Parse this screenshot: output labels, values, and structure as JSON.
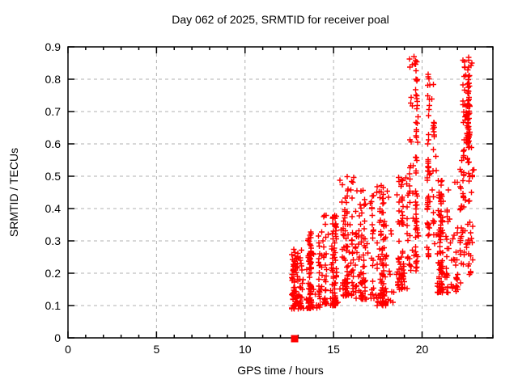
{
  "figure": {
    "background": "#ffffff",
    "text_color": "#000000"
  },
  "chart_data": {
    "type": "scatter",
    "title": "Day 062 of 2025, SRMTID for receiver poal",
    "xlabel": "GPS time / hours",
    "ylabel": "SRMTID / TECUs",
    "xlim": [
      0,
      24
    ],
    "ylim": [
      0,
      0.9
    ],
    "x_major_ticks": [
      {
        "value": 0,
        "label": "0"
      },
      {
        "value": 5,
        "label": "5"
      },
      {
        "value": 10,
        "label": "10"
      },
      {
        "value": 15,
        "label": "15"
      },
      {
        "value": 20,
        "label": "20"
      }
    ],
    "x_minor_tick_step": 1,
    "y_ticks": [
      {
        "value": 0.0,
        "label": "0"
      },
      {
        "value": 0.1,
        "label": "0.1"
      },
      {
        "value": 0.2,
        "label": "0.2"
      },
      {
        "value": 0.3,
        "label": "0.3"
      },
      {
        "value": 0.4,
        "label": "0.4"
      },
      {
        "value": 0.5,
        "label": "0.5"
      },
      {
        "value": 0.6,
        "label": "0.6"
      },
      {
        "value": 0.7,
        "label": "0.7"
      },
      {
        "value": 0.8,
        "label": "0.8"
      },
      {
        "value": 0.9,
        "label": "0.9"
      }
    ],
    "grid": {
      "show": true,
      "color": "#b0b0b0",
      "dash": [
        4,
        4
      ],
      "x_values": [
        5,
        10,
        15,
        20
      ],
      "y_values": [
        0.1,
        0.2,
        0.3,
        0.4,
        0.5,
        0.6,
        0.7,
        0.8
      ]
    },
    "legend": "none",
    "marker": {
      "glyph": "plus",
      "color": "#ff0000",
      "size": 7
    },
    "point_clusters": [
      {
        "x_min": 12.65,
        "x_max": 13.35,
        "y_min": 0.09,
        "y_max": 0.28,
        "count": 95,
        "columns": 5,
        "y_dist": "bottom"
      },
      {
        "x_min": 13.45,
        "x_max": 14.35,
        "y_min": 0.09,
        "y_max": 0.33,
        "count": 115,
        "columns": 6,
        "y_dist": "bottom"
      },
      {
        "x_min": 14.4,
        "x_max": 15.3,
        "y_min": 0.1,
        "y_max": 0.38,
        "count": 105,
        "columns": 6,
        "y_dist": "bottom"
      },
      {
        "x_min": 15.35,
        "x_max": 16.15,
        "y_min": 0.13,
        "y_max": 0.5,
        "count": 95,
        "columns": 5,
        "y_dist": "bottom"
      },
      {
        "x_min": 16.2,
        "x_max": 17.3,
        "y_min": 0.12,
        "y_max": 0.47,
        "count": 95,
        "columns": 6,
        "y_dist": "bottom"
      },
      {
        "x_min": 17.35,
        "x_max": 18.45,
        "y_min": 0.1,
        "y_max": 0.48,
        "count": 105,
        "columns": 6,
        "y_dist": "bottom"
      },
      {
        "x_min": 18.5,
        "x_max": 19.2,
        "y_min": 0.15,
        "y_max": 0.5,
        "count": 75,
        "columns": 4,
        "y_dist": "bottom"
      },
      {
        "x_min": 19.25,
        "x_max": 19.8,
        "y_min": 0.2,
        "y_max": 0.87,
        "count": 85,
        "columns": 3,
        "y_dist": "uniform"
      },
      {
        "x_min": 20.25,
        "x_max": 20.8,
        "y_min": 0.25,
        "y_max": 0.82,
        "count": 70,
        "columns": 3,
        "y_dist": "uniform"
      },
      {
        "x_min": 20.85,
        "x_max": 22.1,
        "y_min": 0.14,
        "y_max": 0.5,
        "count": 135,
        "columns": 8,
        "y_dist": "bottom"
      },
      {
        "x_min": 22.15,
        "x_max": 23.0,
        "y_min": 0.17,
        "y_max": 0.55,
        "count": 65,
        "columns": 4,
        "y_dist": "uniform"
      },
      {
        "x_min": 22.3,
        "x_max": 22.85,
        "y_min": 0.55,
        "y_max": 0.87,
        "count": 55,
        "columns": 3,
        "y_dist": "uniform"
      },
      {
        "x_min": 22.4,
        "x_max": 22.7,
        "y_min": 0.6,
        "y_max": 0.72,
        "count": 35,
        "columns": 2,
        "y_dist": "uniform"
      }
    ],
    "extra_points": [
      [
        19.55,
        0.87
      ],
      [
        19.45,
        0.845
      ],
      [
        20.35,
        0.815
      ],
      [
        22.62,
        0.868
      ],
      [
        13.0,
        0.1
      ]
    ],
    "baseline_marker": {
      "x": 12.8,
      "y": 0,
      "glyph": "filled-square",
      "color": "#ff0000",
      "size": 9
    },
    "seed": 62
  }
}
